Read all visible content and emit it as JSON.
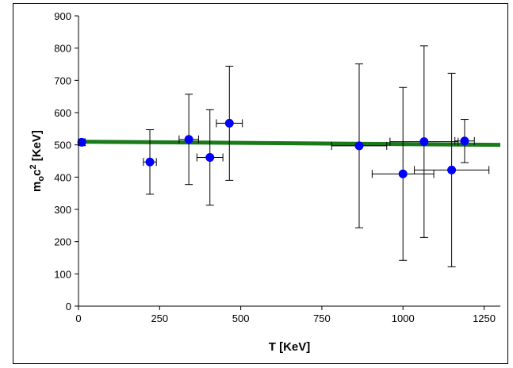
{
  "chart_data": {
    "type": "scatter",
    "xlabel": "T [KeV]",
    "ylabel_parts": {
      "main": "m",
      "sub": "o",
      "mid": "c",
      "sup": "2",
      "unit": " [KeV]"
    },
    "xlim": [
      0,
      1300
    ],
    "ylim": [
      0,
      900
    ],
    "xticks": [
      0,
      250,
      500,
      750,
      1000,
      1250
    ],
    "yticks": [
      0,
      100,
      200,
      300,
      400,
      500,
      600,
      700,
      800,
      900
    ],
    "xtick_labels": [
      "0",
      "250",
      "500",
      "750",
      "1000",
      "1250"
    ],
    "ytick_labels": [
      "0",
      "100",
      "200",
      "300",
      "400",
      "500",
      "600",
      "700",
      "800",
      "900"
    ],
    "grid": false,
    "points": [
      {
        "x": 10,
        "y": 508,
        "xerr": 10,
        "yerr": 10
      },
      {
        "x": 220,
        "y": 447,
        "xerr": 20,
        "yerr": 100
      },
      {
        "x": 340,
        "y": 517,
        "xerr": 30,
        "yerr": 140
      },
      {
        "x": 405,
        "y": 461,
        "xerr": 40,
        "yerr": 148
      },
      {
        "x": 465,
        "y": 567,
        "xerr": 40,
        "yerr": 177
      },
      {
        "x": 865,
        "y": 497,
        "xerr": 85,
        "yerr": 254
      },
      {
        "x": 1000,
        "y": 410,
        "xerr": 95,
        "yerr": 268
      },
      {
        "x": 1065,
        "y": 510,
        "xerr": 105,
        "yerr": 297
      },
      {
        "x": 1150,
        "y": 422,
        "xerr": 115,
        "yerr": 300
      },
      {
        "x": 1190,
        "y": 512,
        "xerr": 30,
        "yerr": 67
      }
    ],
    "fit_line": {
      "x": [
        0,
        1300
      ],
      "y": [
        510,
        500
      ]
    },
    "colors": {
      "points": "#0000ff",
      "fit": "#1a7a1a",
      "errorbars": "#000000"
    }
  }
}
